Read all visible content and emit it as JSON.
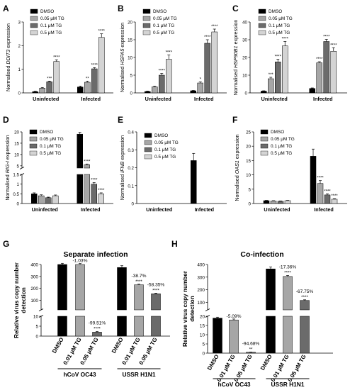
{
  "colors": {
    "dmso": "#000000",
    "tg005": "#a6a6a6",
    "tg01": "#6b6b6b",
    "tg05": "#d4d4d4",
    "tg001": "#a6a6a6"
  },
  "chart_data": [
    {
      "panel": "A",
      "type": "bar",
      "ylabel": "Normalised DDIT3 expression",
      "ylabel_prefix": "Normalised ",
      "ylabel_gene": "DDIT3",
      "ylabel_suffix": " expression",
      "ylim": [
        0,
        3
      ],
      "yticks": [
        0,
        1,
        2,
        3
      ],
      "categories": [
        "Uninfected",
        "Infected"
      ],
      "legend": [
        "DMSO",
        "0.05 μM TG",
        "0.1 μM TG",
        "0.5 μM TG"
      ],
      "series": [
        {
          "name": "DMSO",
          "values": [
            0.05,
            0.25
          ],
          "err": [
            0.02,
            0.04
          ],
          "sig": [
            "",
            ""
          ]
        },
        {
          "name": "0.05 μM TG",
          "values": [
            0.2,
            0.45
          ],
          "err": [
            0.03,
            0.05
          ],
          "sig": [
            "",
            "**"
          ]
        },
        {
          "name": "0.1 μM TG",
          "values": [
            0.47,
            1.02
          ],
          "err": [
            0.03,
            0.05
          ],
          "sig": [
            "***",
            "****"
          ]
        },
        {
          "name": "0.5 μM TG",
          "values": [
            1.33,
            2.35
          ],
          "err": [
            0.07,
            0.15
          ],
          "sig": [
            "****",
            "****"
          ]
        }
      ]
    },
    {
      "panel": "B",
      "type": "bar",
      "ylabel": "Normalised HSPA5 expression",
      "ylabel_prefix": "Normalised ",
      "ylabel_gene": "HSPA5",
      "ylabel_suffix": " expression",
      "ylim": [
        0,
        20
      ],
      "yticks": [
        0,
        5,
        10,
        15,
        20
      ],
      "categories": [
        "Uninfected",
        "Infected"
      ],
      "legend": [
        "DMSO",
        "0.05 μM TG",
        "0.1 μM TG",
        "0.5 μM TG"
      ],
      "series": [
        {
          "name": "DMSO",
          "values": [
            0.4,
            0.6
          ],
          "err": [
            0.1,
            0.1
          ],
          "sig": [
            "",
            ""
          ]
        },
        {
          "name": "0.05 μM TG",
          "values": [
            1.7,
            2.8
          ],
          "err": [
            0.2,
            0.3
          ],
          "sig": [
            "",
            "*"
          ]
        },
        {
          "name": "0.1 μM TG",
          "values": [
            5.0,
            14.0
          ],
          "err": [
            0.5,
            1.0
          ],
          "sig": [
            "****",
            "****"
          ]
        },
        {
          "name": "0.5 μM TG",
          "values": [
            9.5,
            17.2
          ],
          "err": [
            1.2,
            0.8
          ],
          "sig": [
            "****",
            "****"
          ]
        }
      ]
    },
    {
      "panel": "C",
      "type": "bar",
      "ylabel": "Normalised HSP90B1 expression",
      "ylabel_prefix": "Normalised ",
      "ylabel_gene": "HSP90B1",
      "ylabel_suffix": " expression",
      "ylim": [
        0,
        40
      ],
      "yticks": [
        0,
        10,
        20,
        30,
        40
      ],
      "categories": [
        "Uninfected",
        "Infected"
      ],
      "legend": [
        "DMSO",
        "0.05 μM TG",
        "0.1 μM TG",
        "0.5 μM TG"
      ],
      "series": [
        {
          "name": "DMSO",
          "values": [
            1.0,
            2.5
          ],
          "err": [
            0.2,
            0.3
          ],
          "sig": [
            "",
            ""
          ]
        },
        {
          "name": "0.05 μM TG",
          "values": [
            8.0,
            17.0
          ],
          "err": [
            0.8,
            0.6
          ],
          "sig": [
            "***",
            "****"
          ]
        },
        {
          "name": "0.1 μM TG",
          "values": [
            17.5,
            29.0
          ],
          "err": [
            1.5,
            1.2
          ],
          "sig": [
            "****",
            "****"
          ]
        },
        {
          "name": "0.5 μM TG",
          "values": [
            26.5,
            23.5
          ],
          "err": [
            2.5,
            2.0
          ],
          "sig": [
            "****",
            "****"
          ]
        }
      ]
    },
    {
      "panel": "D",
      "type": "bar",
      "ylabel": "Normalised RIG-I expression",
      "ylabel_prefix": "Normalised ",
      "ylabel_gene": "RIG-I",
      "ylabel_suffix": " expression",
      "broken_axis": true,
      "lower_range": [
        0,
        1.5
      ],
      "upper_range": [
        4,
        20
      ],
      "lower_ticks": [
        0,
        0.5,
        1.0,
        1.5
      ],
      "upper_ticks": [
        5,
        10,
        15,
        20
      ],
      "categories": [
        "Uninfected",
        "Infected"
      ],
      "legend": [
        "DMSO",
        "0.05 μM TG",
        "0.1 μM TG",
        "0.5 μM TG"
      ],
      "series": [
        {
          "name": "DMSO",
          "values": [
            0.5,
            19.0
          ],
          "err": [
            0.05,
            0.8
          ],
          "sig": [
            "",
            ""
          ]
        },
        {
          "name": "0.05 μM TG",
          "values": [
            0.4,
            5.5
          ],
          "err": [
            0.05,
            0.3
          ],
          "sig": [
            "",
            "****"
          ]
        },
        {
          "name": "0.1 μM TG",
          "values": [
            0.3,
            1.0
          ],
          "err": [
            0.03,
            0.08
          ],
          "sig": [
            "",
            "****"
          ]
        },
        {
          "name": "0.5 μM TG",
          "values": [
            0.4,
            0.5
          ],
          "err": [
            0.04,
            0.05
          ],
          "sig": [
            "",
            "****"
          ]
        }
      ]
    },
    {
      "panel": "E",
      "type": "bar",
      "ylabel": "Normalised IFNB expression",
      "ylabel_prefix": "Normalised ",
      "ylabel_gene": "IFNB",
      "ylabel_suffix": " expression",
      "ylim": [
        0,
        0.4
      ],
      "yticks": [
        0,
        0.1,
        0.2,
        0.3,
        0.4
      ],
      "categories": [
        "Uninfected",
        "Infected"
      ],
      "legend": [
        "DMSO",
        "0.05 μM TG",
        "0.1 μM TG",
        "0.5 μM TG"
      ],
      "series": [
        {
          "name": "DMSO",
          "values": [
            0,
            0.24
          ],
          "err": [
            0,
            0.04
          ],
          "sig": [
            "",
            ""
          ]
        },
        {
          "name": "0.05 μM TG",
          "values": [
            0,
            0
          ],
          "err": [
            0,
            0
          ],
          "sig": [
            "",
            ""
          ]
        },
        {
          "name": "0.1 μM TG",
          "values": [
            0,
            0
          ],
          "err": [
            0,
            0
          ],
          "sig": [
            "",
            ""
          ]
        },
        {
          "name": "0.5 μM TG",
          "values": [
            0,
            0
          ],
          "err": [
            0,
            0
          ],
          "sig": [
            "",
            ""
          ]
        }
      ]
    },
    {
      "panel": "F",
      "type": "bar",
      "ylabel": "Normalised OAS1 expression",
      "ylabel_prefix": "Normalised ",
      "ylabel_gene": "OAS1",
      "ylabel_suffix": " expression",
      "ylim": [
        0,
        25
      ],
      "yticks": [
        0,
        5,
        10,
        15,
        20,
        25
      ],
      "categories": [
        "Uninfected",
        "Infected"
      ],
      "legend": [
        "DMSO",
        "0.05 μM TG",
        "0.1 μM TG",
        "0.5 μM TG"
      ],
      "series": [
        {
          "name": "DMSO",
          "values": [
            1.0,
            16.5
          ],
          "err": [
            0.1,
            2.5
          ],
          "sig": [
            "",
            ""
          ]
        },
        {
          "name": "0.05 μM TG",
          "values": [
            0.9,
            7.0
          ],
          "err": [
            0.1,
            1.0
          ],
          "sig": [
            "",
            "****"
          ]
        },
        {
          "name": "0.1 μM TG",
          "values": [
            0.8,
            3.0
          ],
          "err": [
            0.1,
            0.4
          ],
          "sig": [
            "",
            "****"
          ]
        },
        {
          "name": "0.5 μM TG",
          "values": [
            1.0,
            1.5
          ],
          "err": [
            0.1,
            0.2
          ],
          "sig": [
            "",
            "****"
          ]
        }
      ]
    },
    {
      "panel": "G",
      "type": "bar",
      "title": "Separate infection",
      "ylabel": "Relative virus copy number detection",
      "ylabel_lines": [
        "Relative virus copy number",
        "detection"
      ],
      "broken_axis": true,
      "lower_range": [
        0,
        10
      ],
      "upper_range": [
        20,
        400
      ],
      "lower_ticks": [
        0,
        5,
        10
      ],
      "upper_ticks": [
        100,
        200,
        300,
        400
      ],
      "groups": [
        "hCoV OC43",
        "USSR H1N1"
      ],
      "categories": [
        "DMSO",
        "0.01 μM TG",
        "0.05 μM TG",
        "DMSO",
        "0.01 μM TG",
        "0.05 μM TG"
      ],
      "values": [
        400,
        400,
        2,
        375,
        230,
        155
      ],
      "err": [
        10,
        8,
        0.3,
        15,
        5,
        5
      ],
      "pct": [
        "",
        "-1.03%",
        "-99.51%",
        "",
        "-38.7%",
        "-58.35%"
      ],
      "sig": [
        "",
        "",
        "****",
        "",
        "****",
        "****"
      ]
    },
    {
      "panel": "H",
      "type": "bar",
      "title": "Co-infection",
      "ylabel": "Relative virus copy number detection",
      "ylabel_lines": [
        "Relative virus copy number",
        "detection"
      ],
      "broken_axis": true,
      "lower_range": [
        0,
        20
      ],
      "upper_range": [
        40,
        400
      ],
      "lower_ticks": [
        0,
        5,
        10,
        15,
        20
      ],
      "upper_ticks": [
        100,
        200,
        300,
        400
      ],
      "groups": [
        "hCoV OC43",
        "USSR H1N1"
      ],
      "categories": [
        "DMSO",
        "0.01 μM TG",
        "0.05 μM TG",
        "DMSO",
        "0.01 μM TG",
        "0.05 μM TG"
      ],
      "values": [
        19,
        18,
        0.5,
        365,
        305,
        115
      ],
      "err": [
        0.5,
        0.5,
        0.1,
        15,
        8,
        5
      ],
      "pct": [
        "",
        "-5.09%",
        "-94.68%",
        "",
        "-17.36%",
        "-67.75%"
      ],
      "sig": [
        "",
        "",
        "**",
        "",
        "****",
        "****"
      ]
    }
  ]
}
